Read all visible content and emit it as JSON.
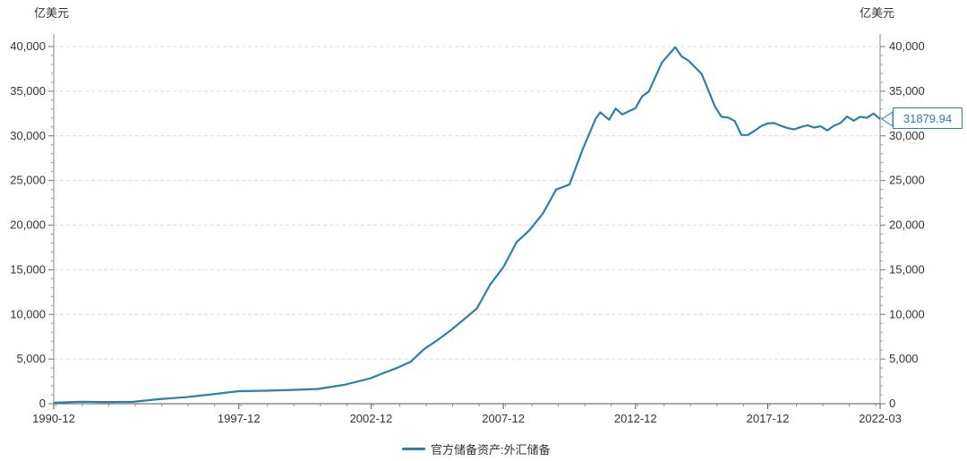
{
  "chart_data": {
    "type": "line",
    "left_unit": "亿美元",
    "right_unit": "亿美元",
    "ylim": [
      0,
      40000
    ],
    "y_ticks": [
      "0",
      "5,000",
      "10,000",
      "15,000",
      "20,000",
      "25,000",
      "30,000",
      "35,000",
      "40,000"
    ],
    "x_ticks": [
      "1990-12",
      "1997-12",
      "2002-12",
      "2007-12",
      "2012-12",
      "2017-12",
      "2022-03"
    ],
    "grid": true,
    "legend_position": "bottom",
    "last_value": "31879.94",
    "series": [
      {
        "name": "官方储备资产:外汇储备",
        "color": "#2f7fa8",
        "points": [
          [
            "1990-12",
            110
          ],
          [
            "1991-12",
            217
          ],
          [
            "1992-12",
            194
          ],
          [
            "1993-12",
            212
          ],
          [
            "1994-12",
            516
          ],
          [
            "1995-12",
            736
          ],
          [
            "1996-12",
            1050
          ],
          [
            "1997-12",
            1399
          ],
          [
            "1998-12",
            1450
          ],
          [
            "1999-12",
            1547
          ],
          [
            "2000-12",
            1656
          ],
          [
            "2001-12",
            2122
          ],
          [
            "2002-12",
            2864
          ],
          [
            "2003-06",
            3465
          ],
          [
            "2003-12",
            4033
          ],
          [
            "2004-06",
            4700
          ],
          [
            "2004-12",
            6099
          ],
          [
            "2005-06",
            7110
          ],
          [
            "2005-12",
            8189
          ],
          [
            "2006-06",
            9411
          ],
          [
            "2006-12",
            10663
          ],
          [
            "2007-06",
            13326
          ],
          [
            "2007-12",
            15282
          ],
          [
            "2008-06",
            18088
          ],
          [
            "2008-12",
            19460
          ],
          [
            "2009-06",
            21316
          ],
          [
            "2009-12",
            23992
          ],
          [
            "2010-06",
            24543
          ],
          [
            "2010-12",
            28473
          ],
          [
            "2011-06",
            31975
          ],
          [
            "2011-08",
            32625
          ],
          [
            "2011-12",
            31811
          ],
          [
            "2012-03",
            33050
          ],
          [
            "2012-06",
            32400
          ],
          [
            "2012-12",
            33116
          ],
          [
            "2013-03",
            34426
          ],
          [
            "2013-06",
            34967
          ],
          [
            "2013-12",
            38213
          ],
          [
            "2014-06",
            39932
          ],
          [
            "2014-09",
            38877
          ],
          [
            "2014-12",
            38430
          ],
          [
            "2015-06",
            36938
          ],
          [
            "2015-09",
            35141
          ],
          [
            "2015-12",
            33304
          ],
          [
            "2016-03",
            32126
          ],
          [
            "2016-06",
            32052
          ],
          [
            "2016-09",
            31664
          ],
          [
            "2016-12",
            30105
          ],
          [
            "2017-03",
            30091
          ],
          [
            "2017-06",
            30568
          ],
          [
            "2017-09",
            31085
          ],
          [
            "2017-12",
            31399
          ],
          [
            "2018-03",
            31428
          ],
          [
            "2018-06",
            31121
          ],
          [
            "2018-09",
            30870
          ],
          [
            "2018-12",
            30727
          ],
          [
            "2019-03",
            30988
          ],
          [
            "2019-06",
            31192
          ],
          [
            "2019-09",
            30924
          ],
          [
            "2019-12",
            31079
          ],
          [
            "2020-03",
            30606
          ],
          [
            "2020-06",
            31123
          ],
          [
            "2020-09",
            31426
          ],
          [
            "2020-12",
            32165
          ],
          [
            "2021-03",
            31700
          ],
          [
            "2021-06",
            32140
          ],
          [
            "2021-09",
            32006
          ],
          [
            "2021-12",
            32502
          ],
          [
            "2022-03",
            31880
          ]
        ]
      }
    ]
  }
}
